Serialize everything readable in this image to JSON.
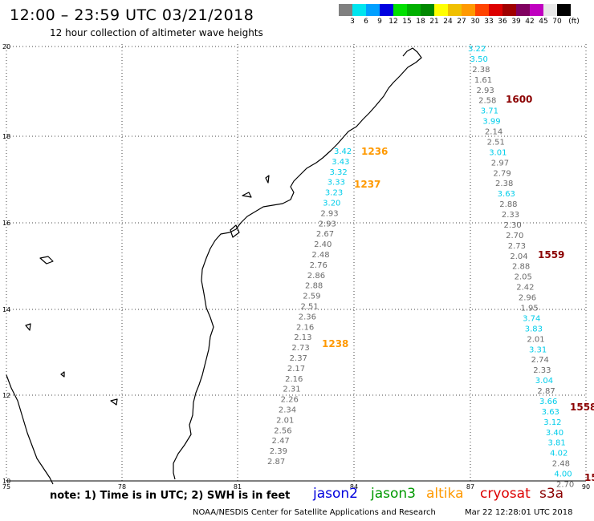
{
  "header": {
    "title": "12:00 – 23:59 UTC 03/21/2018",
    "subtitle": "12 hour collection of altimeter wave heights"
  },
  "legend": {
    "unit": "(ft)",
    "bins": [
      {
        "label": "3",
        "color": "#808080"
      },
      {
        "label": "6",
        "color": "#00e5ee"
      },
      {
        "label": "9",
        "color": "#00a0ff"
      },
      {
        "label": "12",
        "color": "#0000e0"
      },
      {
        "label": "15",
        "color": "#00e000"
      },
      {
        "label": "18",
        "color": "#00b000"
      },
      {
        "label": "21",
        "color": "#008800"
      },
      {
        "label": "24",
        "color": "#ffff00"
      },
      {
        "label": "27",
        "color": "#f0c000"
      },
      {
        "label": "30",
        "color": "#ff9900"
      },
      {
        "label": "33",
        "color": "#ff4400"
      },
      {
        "label": "36",
        "color": "#dd0000"
      },
      {
        "label": "39",
        "color": "#a00000"
      },
      {
        "label": "42",
        "color": "#800060"
      },
      {
        "label": "45",
        "color": "#c000c0"
      },
      {
        "label": "70",
        "color": "#e8e8e8"
      },
      {
        "label": "",
        "color": "#000000"
      }
    ]
  },
  "map": {
    "lon_ticks": [
      "75",
      "78",
      "81",
      "84",
      "87",
      "90"
    ],
    "lat_ticks": [
      "20",
      "18",
      "16",
      "14",
      "12",
      "10"
    ],
    "lon_range": [
      75,
      90
    ],
    "lat_range": [
      10,
      20
    ]
  },
  "tracks": [
    {
      "id": "track-east",
      "values": [
        {
          "v": "3.22",
          "c": "#00cdea"
        },
        {
          "v": "3.50",
          "c": "#00cdea"
        },
        {
          "v": "2.38",
          "c": "#6b6b6b"
        },
        {
          "v": "1.61",
          "c": "#6b6b6b"
        },
        {
          "v": "2.93",
          "c": "#6b6b6b"
        },
        {
          "v": "2.58",
          "c": "#6b6b6b"
        },
        {
          "v": "3.71",
          "c": "#00cdea"
        },
        {
          "v": "3.99",
          "c": "#00cdea"
        },
        {
          "v": "2.14",
          "c": "#6b6b6b"
        },
        {
          "v": "2.51",
          "c": "#6b6b6b"
        },
        {
          "v": "3.01",
          "c": "#00cdea"
        },
        {
          "v": "2.97",
          "c": "#6b6b6b"
        },
        {
          "v": "2.79",
          "c": "#6b6b6b"
        },
        {
          "v": "2.38",
          "c": "#6b6b6b"
        },
        {
          "v": "3.63",
          "c": "#00cdea"
        },
        {
          "v": "2.88",
          "c": "#6b6b6b"
        },
        {
          "v": "2.33",
          "c": "#6b6b6b"
        },
        {
          "v": "2.30",
          "c": "#6b6b6b"
        },
        {
          "v": "2.70",
          "c": "#6b6b6b"
        },
        {
          "v": "2.73",
          "c": "#6b6b6b"
        },
        {
          "v": "2.04",
          "c": "#6b6b6b"
        },
        {
          "v": "2.88",
          "c": "#6b6b6b"
        },
        {
          "v": "2.05",
          "c": "#6b6b6b"
        },
        {
          "v": "2.42",
          "c": "#6b6b6b"
        },
        {
          "v": "2.96",
          "c": "#6b6b6b"
        },
        {
          "v": "1.95",
          "c": "#6b6b6b"
        },
        {
          "v": "3.74",
          "c": "#00cdea"
        },
        {
          "v": "3.83",
          "c": "#00cdea"
        },
        {
          "v": "2.01",
          "c": "#6b6b6b"
        },
        {
          "v": "3.31",
          "c": "#00cdea"
        },
        {
          "v": "2.74",
          "c": "#6b6b6b"
        },
        {
          "v": "2.33",
          "c": "#6b6b6b"
        },
        {
          "v": "3.04",
          "c": "#00cdea"
        },
        {
          "v": "2.87",
          "c": "#6b6b6b"
        },
        {
          "v": "3.66",
          "c": "#00cdea"
        },
        {
          "v": "3.63",
          "c": "#00cdea"
        },
        {
          "v": "3.12",
          "c": "#00cdea"
        },
        {
          "v": "3.40",
          "c": "#00cdea"
        },
        {
          "v": "3.81",
          "c": "#00cdea"
        },
        {
          "v": "4.02",
          "c": "#00cdea"
        },
        {
          "v": "2.48",
          "c": "#6b6b6b"
        },
        {
          "v": "4.00",
          "c": "#00cdea"
        },
        {
          "v": "2.70",
          "c": "#6b6b6b"
        }
      ]
    },
    {
      "id": "track-west",
      "values": [
        {
          "v": "3.42",
          "c": "#00cdea"
        },
        {
          "v": "3.43",
          "c": "#00cdea"
        },
        {
          "v": "3.32",
          "c": "#00cdea"
        },
        {
          "v": "3.33",
          "c": "#00cdea"
        },
        {
          "v": "3.23",
          "c": "#00cdea"
        },
        {
          "v": "3.20",
          "c": "#00cdea"
        },
        {
          "v": "2.93",
          "c": "#6b6b6b"
        },
        {
          "v": "2.93",
          "c": "#6b6b6b"
        },
        {
          "v": "2.67",
          "c": "#6b6b6b"
        },
        {
          "v": "2.40",
          "c": "#6b6b6b"
        },
        {
          "v": "2.48",
          "c": "#6b6b6b"
        },
        {
          "v": "2.76",
          "c": "#6b6b6b"
        },
        {
          "v": "2.86",
          "c": "#6b6b6b"
        },
        {
          "v": "2.88",
          "c": "#6b6b6b"
        },
        {
          "v": "2.59",
          "c": "#6b6b6b"
        },
        {
          "v": "2.51",
          "c": "#6b6b6b"
        },
        {
          "v": "2.36",
          "c": "#6b6b6b"
        },
        {
          "v": "2.16",
          "c": "#6b6b6b"
        },
        {
          "v": "2.13",
          "c": "#6b6b6b"
        },
        {
          "v": "2.73",
          "c": "#6b6b6b"
        },
        {
          "v": "2.37",
          "c": "#6b6b6b"
        },
        {
          "v": "2.17",
          "c": "#6b6b6b"
        },
        {
          "v": "2.16",
          "c": "#6b6b6b"
        },
        {
          "v": "2.31",
          "c": "#6b6b6b"
        },
        {
          "v": "2.26",
          "c": "#6b6b6b"
        },
        {
          "v": "2.34",
          "c": "#6b6b6b"
        },
        {
          "v": "2.01",
          "c": "#6b6b6b"
        },
        {
          "v": "2.56",
          "c": "#6b6b6b"
        },
        {
          "v": "2.47",
          "c": "#6b6b6b"
        },
        {
          "v": "2.39",
          "c": "#6b6b6b"
        },
        {
          "v": "2.87",
          "c": "#6b6b6b"
        }
      ]
    }
  ],
  "pass_times": [
    {
      "label": "1600",
      "color": "#8b0000"
    },
    {
      "label": "1559",
      "color": "#8b0000"
    },
    {
      "label": "1558",
      "color": "#8b0000"
    },
    {
      "label": "15",
      "color": "#8b0000"
    },
    {
      "label": "1236",
      "color": "#ff9900"
    },
    {
      "label": "1237",
      "color": "#ff9900"
    },
    {
      "label": "1238",
      "color": "#ff9900"
    }
  ],
  "footer": {
    "note": "note:  1) Time is in UTC;  2) SWH is in feet",
    "missions": [
      {
        "label": "jason2",
        "color": "#0000dd"
      },
      {
        "label": "jason3",
        "color": "#009900"
      },
      {
        "label": "altika",
        "color": "#ff9900"
      },
      {
        "label": "cryosat",
        "color": "#dd0000"
      },
      {
        "label": "s3a",
        "color": "#8b0000"
      }
    ],
    "credit": "NOAA/NESDIS Center for Satellite Applications and Research",
    "datetime": "Mar 22 12:28:01 UTC 2018"
  }
}
